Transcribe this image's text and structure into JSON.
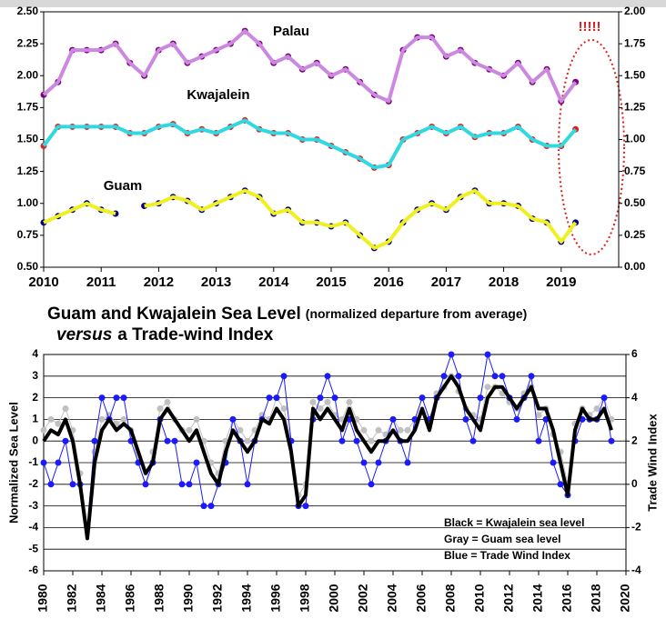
{
  "charts": [
    {
      "chart_data": {
        "type": "line",
        "xlim": [
          2010,
          2020
        ],
        "xticks": [
          2010,
          2011,
          2012,
          2013,
          2014,
          2015,
          2016,
          2017,
          2018,
          2019
        ],
        "ylim": [
          0.5,
          2.5
        ],
        "yticks": [
          {
            "value": 0.5,
            "label": "0.50"
          },
          {
            "value": 0.75,
            "label": "0.75"
          },
          {
            "value": 1.0,
            "label": "1.00"
          },
          {
            "value": 1.25,
            "label": "1.25"
          },
          {
            "value": 1.5,
            "label": "1.50"
          },
          {
            "value": 1.75,
            "label": "1.75"
          },
          {
            "value": 2.0,
            "label": "2.00"
          },
          {
            "value": 2.25,
            "label": "2.25"
          },
          {
            "value": 2.5,
            "label": "2.50"
          }
        ],
        "y2lim": [
          0,
          2
        ],
        "y2ticks": [
          {
            "value": 0,
            "label": "0.00"
          },
          {
            "value": 0.25,
            "label": "0.25"
          },
          {
            "value": 0.5,
            "label": "0.50"
          },
          {
            "value": 0.75,
            "label": "0.75"
          },
          {
            "value": 1.0,
            "label": "1.00"
          },
          {
            "value": 1.25,
            "label": "1.25"
          },
          {
            "value": 1.5,
            "label": "1.50"
          },
          {
            "value": 1.75,
            "label": "1.75"
          },
          {
            "value": 2.0,
            "label": "2.00"
          }
        ],
        "grid": false,
        "annotation": "!!!!!",
        "x": [
          2010,
          2010.25,
          2010.5,
          2010.75,
          2011,
          2011.25,
          2011.5,
          2011.75,
          2012,
          2012.25,
          2012.5,
          2012.75,
          2013,
          2013.25,
          2013.5,
          2013.75,
          2014,
          2014.25,
          2014.5,
          2014.75,
          2015,
          2015.25,
          2015.5,
          2015.75,
          2016,
          2016.25,
          2016.5,
          2016.75,
          2017,
          2017.25,
          2017.5,
          2017.75,
          2018,
          2018.25,
          2018.5,
          2018.75,
          2019,
          2019.25
        ],
        "series": [
          {
            "name": "Palau",
            "color": "#7a007a",
            "line_color": "#cc88e0",
            "marker": "circle",
            "values": [
              1.85,
              1.95,
              2.2,
              2.2,
              2.2,
              2.25,
              2.1,
              2.0,
              2.2,
              2.25,
              2.1,
              2.15,
              2.2,
              2.25,
              2.35,
              2.25,
              2.1,
              2.15,
              2.05,
              2.1,
              2.0,
              2.05,
              1.95,
              1.85,
              1.8,
              2.2,
              2.3,
              2.3,
              2.15,
              2.2,
              2.1,
              2.05,
              2.0,
              2.1,
              1.95,
              2.05,
              1.8,
              1.95
            ]
          },
          {
            "name": "Kwajalein",
            "color": "#e02020",
            "line_color": "#30d8e0",
            "marker": "circle",
            "values": [
              1.45,
              1.6,
              1.6,
              1.6,
              1.6,
              1.6,
              1.55,
              1.55,
              1.6,
              1.62,
              1.55,
              1.58,
              1.55,
              1.6,
              1.65,
              1.58,
              1.55,
              1.55,
              1.5,
              1.5,
              1.45,
              1.4,
              1.35,
              1.28,
              1.3,
              1.5,
              1.55,
              1.6,
              1.55,
              1.6,
              1.52,
              1.55,
              1.55,
              1.6,
              1.5,
              1.45,
              1.45,
              1.58
            ]
          },
          {
            "name": "Guam",
            "color": "#000080",
            "line_color": "#f0f020",
            "marker": "circle",
            "values": [
              0.85,
              0.9,
              0.95,
              1.0,
              0.95,
              0.92,
              null,
              0.98,
              1.0,
              1.05,
              1.02,
              0.95,
              1.0,
              1.05,
              1.1,
              1.05,
              0.92,
              0.95,
              0.85,
              0.85,
              0.82,
              0.85,
              0.75,
              0.65,
              0.7,
              0.85,
              0.95,
              1.0,
              0.95,
              1.05,
              1.1,
              1.0,
              1.0,
              0.98,
              0.88,
              0.85,
              0.7,
              0.85
            ]
          }
        ]
      }
    },
    {
      "chart_data": {
        "type": "line",
        "title": "Guam and Kwajalein Sea Level",
        "title_note": "(normalized departure from average)",
        "subtitle_emphasis": "versus",
        "subtitle": "a Trade-wind Index",
        "y_label": "Normalized Sea Level",
        "y2_label": "Trade Wind Index",
        "xlim": [
          1980,
          2020
        ],
        "xticks": [
          1980,
          1982,
          1984,
          1986,
          1988,
          1990,
          1992,
          1994,
          1996,
          1998,
          2000,
          2002,
          2004,
          2006,
          2008,
          2010,
          2012,
          2014,
          2016,
          2018,
          2020
        ],
        "ylim": [
          -6,
          4
        ],
        "yticks": [
          -6,
          -5,
          -4,
          -3,
          -2,
          -1,
          0,
          1,
          2,
          3,
          4
        ],
        "y2lim": [
          -4,
          6
        ],
        "y2ticks": [
          -4,
          -2,
          0,
          2,
          4,
          6
        ],
        "grid": true,
        "x": [
          1980,
          1980.5,
          1981,
          1981.5,
          1982,
          1982.5,
          1983,
          1983.5,
          1984,
          1984.5,
          1985,
          1985.5,
          1986,
          1986.5,
          1987,
          1987.5,
          1988,
          1988.5,
          1989,
          1989.5,
          1990,
          1990.5,
          1991,
          1991.5,
          1992,
          1992.5,
          1993,
          1993.5,
          1994,
          1994.5,
          1995,
          1995.5,
          1996,
          1996.5,
          1997,
          1997.5,
          1998,
          1998.5,
          1999,
          1999.5,
          2000,
          2000.5,
          2001,
          2001.5,
          2002,
          2002.5,
          2003,
          2003.5,
          2004,
          2004.5,
          2005,
          2005.5,
          2006,
          2006.5,
          2007,
          2007.5,
          2008,
          2008.5,
          2009,
          2009.5,
          2010,
          2010.5,
          2011,
          2011.5,
          2012,
          2012.5,
          2013,
          2013.5,
          2014,
          2014.5,
          2015,
          2015.5,
          2016,
          2016.5,
          2017,
          2017.5,
          2018,
          2018.5,
          2019
        ],
        "series": [
          {
            "name": "Gray = Guam sea level",
            "color": "#c0c0c0",
            "marker": "circle",
            "values": [
              0.5,
              1,
              0.8,
              1.5,
              0.5,
              -1.5,
              -4,
              -0.5,
              1,
              1.2,
              0.8,
              1,
              0.5,
              -1,
              -2,
              -0.5,
              1.5,
              1.8,
              1,
              0.5,
              0.5,
              1,
              0,
              -1,
              -1.5,
              0,
              1,
              0.5,
              0,
              0.5,
              1.2,
              1,
              2,
              1.5,
              0,
              -2.5,
              -2,
              1.8,
              1.5,
              1.8,
              1.2,
              1,
              1.8,
              1,
              0.5,
              0,
              0.5,
              0.3,
              1,
              0.5,
              0.5,
              1,
              2,
              1,
              2.2,
              2.5,
              3,
              2.3,
              1.5,
              1.2,
              1,
              2.5,
              2.5,
              2.2,
              1.8,
              1.5,
              2.2,
              2.5,
              1.2,
              1.5,
              0.3,
              -0.5,
              -2,
              0.8,
              1.5,
              1.2,
              1.5,
              2,
              1
            ]
          },
          {
            "name": "Blue = Trade Wind Index",
            "color": "#1a1aff",
            "marker": "circle",
            "axis": "y2",
            "values": [
              1,
              0,
              1,
              2,
              0,
              0,
              -2,
              2,
              4,
              3,
              4,
              4,
              2,
              1,
              0,
              1,
              3,
              2,
              2,
              0,
              0,
              1,
              -1,
              -1,
              0,
              1,
              3,
              2,
              0,
              2,
              3,
              4,
              4,
              5,
              2,
              -1,
              -1,
              3,
              4,
              5,
              4,
              2,
              3,
              2,
              1,
              0,
              1,
              2,
              3,
              2,
              1,
              3,
              4,
              3,
              4,
              5,
              6,
              5,
              3,
              2,
              4,
              6,
              5,
              5,
              4,
              3,
              4,
              5,
              2,
              3,
              1,
              0,
              -0.5,
              2,
              3,
              3,
              3,
              4,
              2
            ]
          },
          {
            "name": "Black = Kwajalein sea level",
            "color": "#000000",
            "marker": "none",
            "values": [
              0,
              0.5,
              0.3,
              1,
              0,
              -2,
              -4.5,
              -1,
              0.5,
              1,
              0.5,
              0.8,
              0.5,
              -0.5,
              -1.5,
              -1,
              1,
              1.5,
              1,
              0.5,
              0,
              0.5,
              -0.5,
              -1.5,
              -2,
              -0.5,
              0.5,
              0,
              -0.5,
              0,
              1,
              0.8,
              1.5,
              1,
              -0.5,
              -3,
              -2.5,
              1.5,
              1,
              1.5,
              1,
              0.5,
              1.5,
              0.5,
              0,
              -0.5,
              0,
              0,
              0.5,
              0,
              0,
              0.5,
              1.5,
              0.5,
              2,
              2.5,
              3,
              2.5,
              1.5,
              1,
              0.5,
              2,
              2.5,
              2.5,
              2,
              1.5,
              2,
              2.5,
              1.5,
              1.5,
              0.5,
              -1,
              -2.5,
              0.5,
              1.5,
              1,
              1,
              1.5,
              0.5
            ]
          }
        ]
      }
    }
  ]
}
